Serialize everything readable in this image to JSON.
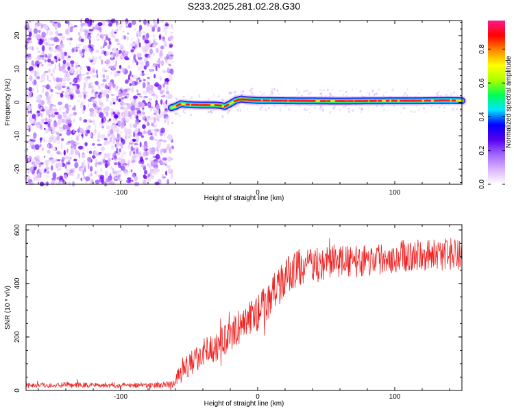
{
  "title": "S233.2025.281.02.28.G30",
  "chart_data": [
    {
      "type": "heatmap",
      "name": "spectrogram",
      "xlabel": "Height of straight line (km)",
      "ylabel": "Frequency (Hz)",
      "xlim": [
        -169,
        149
      ],
      "ylim": [
        -24.5,
        24.5
      ],
      "xticks": [
        -100,
        0,
        100
      ],
      "xtick_labels": [
        "-100",
        "0",
        "100"
      ],
      "yticks": [
        -20,
        -10,
        0,
        10,
        20
      ],
      "ytick_labels": [
        "-20",
        "-10",
        "0",
        "10",
        "20"
      ],
      "noise_region_x": [
        -169,
        -62
      ],
      "signal_track": {
        "x": [
          -63,
          -60,
          -56,
          -50,
          -42,
          -35,
          -31,
          -27,
          -24,
          -20,
          -16,
          -12,
          -8,
          0,
          20,
          60,
          100,
          120,
          140,
          149
        ],
        "y": [
          -1.6,
          -1.2,
          -0.4,
          -0.7,
          -0.8,
          -0.8,
          -0.8,
          -0.9,
          -1.2,
          -0.4,
          0.6,
          1.0,
          0.8,
          0.6,
          0.5,
          0.4,
          0.5,
          0.5,
          0.6,
          0.5
        ],
        "peak_amplitude": 0.95
      },
      "colorbar": {
        "label": "Normalized spectral amplitude",
        "range": [
          0,
          0.97
        ],
        "ticks": [
          0.0,
          0.2,
          0.4,
          0.6,
          0.8
        ],
        "tick_labels": [
          "0.0",
          "0.2",
          "0.4",
          "0.6",
          "0.8"
        ],
        "colors": [
          "#ffffff",
          "#dcb3ff",
          "#a066ff",
          "#5500ee",
          "#0000ff",
          "#00e5ff",
          "#00ff55",
          "#aaff00",
          "#ffff00",
          "#ff8800",
          "#ff0000",
          "#ff1a8c"
        ]
      }
    },
    {
      "type": "line",
      "name": "snr",
      "xlabel": "Height of straight line (km)",
      "ylabel": "SNR (10 * v/v)",
      "xlim": [
        -169,
        149
      ],
      "ylim": [
        0,
        620
      ],
      "xticks": [
        -100,
        0,
        100
      ],
      "xtick_labels": [
        "-100",
        "0",
        "100"
      ],
      "yticks": [
        0,
        200,
        400,
        600
      ],
      "ytick_labels": [
        "0",
        "200",
        "400",
        "600"
      ],
      "line_color": "#ee2222",
      "series": [
        {
          "name": "SNR",
          "x": [
            -169,
            -140,
            -110,
            -80,
            -62,
            -56,
            -50,
            -40,
            -30,
            -20,
            -10,
            0,
            10,
            15,
            20,
            25,
            30,
            40,
            50,
            60,
            70,
            80,
            90,
            100,
            110,
            120,
            130,
            140,
            149
          ],
          "y": [
            20,
            20,
            20,
            20,
            22,
            65,
            95,
            140,
            165,
            205,
            255,
            290,
            350,
            390,
            420,
            445,
            460,
            470,
            475,
            485,
            480,
            485,
            495,
            500,
            505,
            505,
            510,
            510,
            505
          ],
          "noise_amplitude": [
            10,
            10,
            10,
            10,
            12,
            40,
            45,
            50,
            55,
            60,
            65,
            70,
            70,
            75,
            75,
            70,
            70,
            65,
            60,
            60,
            60,
            60,
            60,
            60,
            60,
            60,
            60,
            60,
            60
          ]
        }
      ]
    }
  ]
}
